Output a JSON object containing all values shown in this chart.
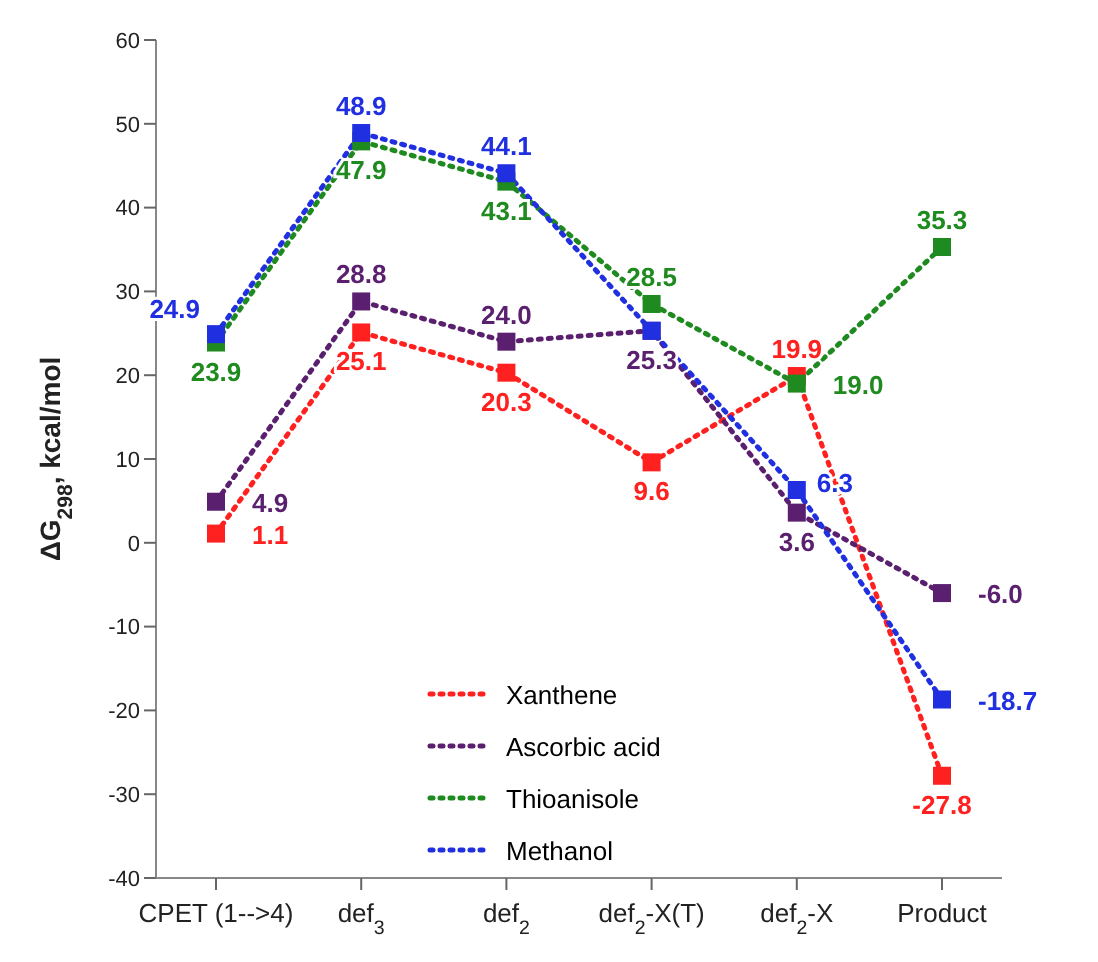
{
  "chart_data": {
    "type": "line",
    "ylabel": "ΔG$_{298}$, kcal/mol",
    "categories": [
      "CPET (1-->4)",
      "def$_{3}$",
      "def$_{2}$",
      "def$_{2}$-X(T)",
      "def$_{2}$-X",
      "Product"
    ],
    "series": [
      {
        "name": "Xanthene",
        "color": "#ff2020",
        "values": [
          1.1,
          25.1,
          20.3,
          9.6,
          19.9,
          -27.8
        ],
        "value_labels": [
          "1.1",
          "25.1",
          "20.3",
          "9.6",
          "19.9",
          "-27.8"
        ]
      },
      {
        "name": "Ascorbic acid",
        "color": "#5a1f6e",
        "values": [
          4.9,
          28.8,
          24.0,
          25.3,
          3.6,
          -6.0
        ],
        "value_labels": [
          "4.9",
          "28.8",
          "24.0",
          "25.3",
          "3.6",
          "-6.0"
        ]
      },
      {
        "name": "Thioanisole",
        "color": "#1f8a1f",
        "values": [
          23.9,
          47.9,
          43.1,
          28.5,
          19.0,
          35.3
        ],
        "value_labels": [
          "23.9",
          "47.9",
          "43.1",
          "28.5",
          "19.0",
          "35.3"
        ]
      },
      {
        "name": "Methanol",
        "color": "#2030e0",
        "values": [
          24.9,
          48.9,
          44.1,
          25.3,
          6.3,
          -18.7
        ],
        "value_labels": [
          "24.9",
          "48.9",
          "44.1",
          null,
          "6.3",
          "-18.7"
        ]
      }
    ],
    "ylim": [
      -40,
      60
    ],
    "yticks": [
      -40,
      -30,
      -20,
      -10,
      0,
      10,
      20,
      30,
      40,
      50,
      60
    ],
    "grid": false,
    "legend": "bottom",
    "marker": "square",
    "line_style": "dotted"
  }
}
